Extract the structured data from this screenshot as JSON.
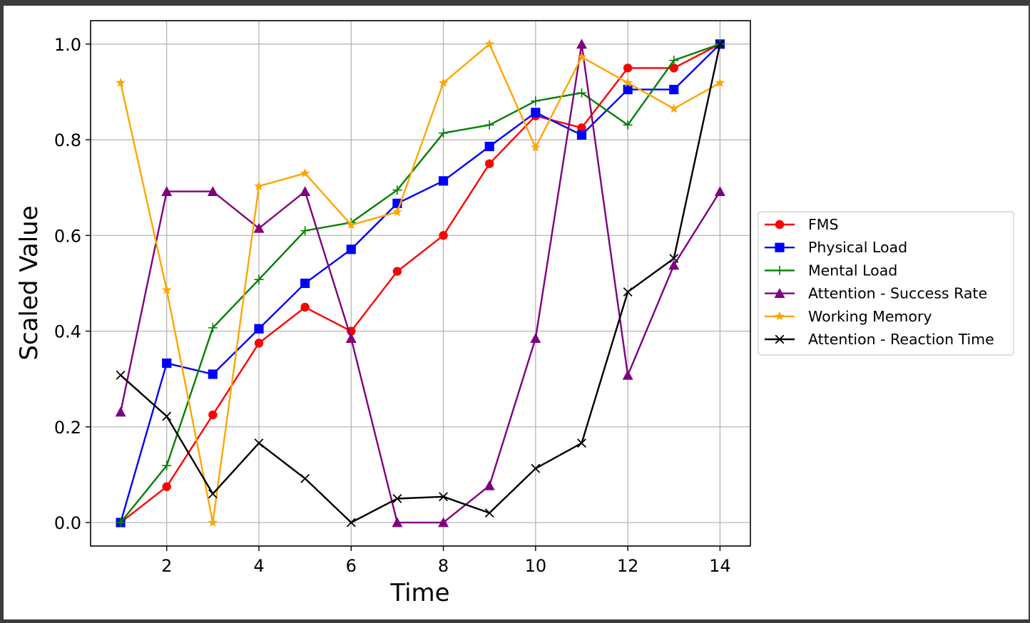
{
  "chart_data": {
    "type": "line",
    "title": "",
    "xlabel": "Time",
    "ylabel": "Scaled Value",
    "xlim": [
      0.35,
      14.65
    ],
    "ylim": [
      -0.05,
      1.05
    ],
    "xticks": [
      2,
      4,
      6,
      8,
      10,
      12,
      14
    ],
    "xtick_labels": [
      "2",
      "4",
      "6",
      "8",
      "10",
      "12",
      "14"
    ],
    "yticks": [
      0.0,
      0.2,
      0.4,
      0.6,
      0.8,
      1.0
    ],
    "ytick_labels": [
      "0.0",
      "0.2",
      "0.4",
      "0.6",
      "0.8",
      "1.0"
    ],
    "grid": true,
    "legend_position": "right, outside plot",
    "x": [
      1,
      2,
      3,
      4,
      5,
      6,
      7,
      8,
      9,
      10,
      11,
      12,
      13,
      14
    ],
    "series": [
      {
        "name": "FMS",
        "color": "#ff0000",
        "marker": "circle",
        "values": [
          0.0,
          0.075,
          0.225,
          0.375,
          0.45,
          0.4,
          0.525,
          0.6,
          0.75,
          0.85,
          0.825,
          0.95,
          0.95,
          1.0
        ]
      },
      {
        "name": "Physical Load",
        "color": "#0000ff",
        "marker": "square",
        "values": [
          0.0,
          0.333,
          0.31,
          0.405,
          0.5,
          0.571,
          0.667,
          0.714,
          0.786,
          0.857,
          0.81,
          0.905,
          0.905,
          1.0
        ]
      },
      {
        "name": "Mental Load",
        "color": "#008000",
        "marker": "plus",
        "values": [
          0.0,
          0.119,
          0.407,
          0.508,
          0.61,
          0.627,
          0.695,
          0.814,
          0.831,
          0.881,
          0.898,
          0.831,
          0.966,
          1.0
        ]
      },
      {
        "name": "Attention - Success Rate",
        "color": "#800080",
        "marker": "triangle",
        "values": [
          0.231,
          0.692,
          0.692,
          0.615,
          0.692,
          0.385,
          0.0,
          0.0,
          0.077,
          0.385,
          1.0,
          0.308,
          0.538,
          0.692
        ]
      },
      {
        "name": "Working Memory",
        "color": "#ffa500",
        "marker": "star",
        "values": [
          0.919,
          0.486,
          0.0,
          0.703,
          0.73,
          0.622,
          0.649,
          0.919,
          1.0,
          0.784,
          0.973,
          0.919,
          0.865,
          0.919
        ]
      },
      {
        "name": "Attention - Reaction Time",
        "color": "#000000",
        "marker": "x",
        "values": [
          0.308,
          0.222,
          0.06,
          0.166,
          0.092,
          0.0,
          0.05,
          0.054,
          0.02,
          0.113,
          0.166,
          0.482,
          0.552,
          1.0
        ]
      }
    ]
  }
}
